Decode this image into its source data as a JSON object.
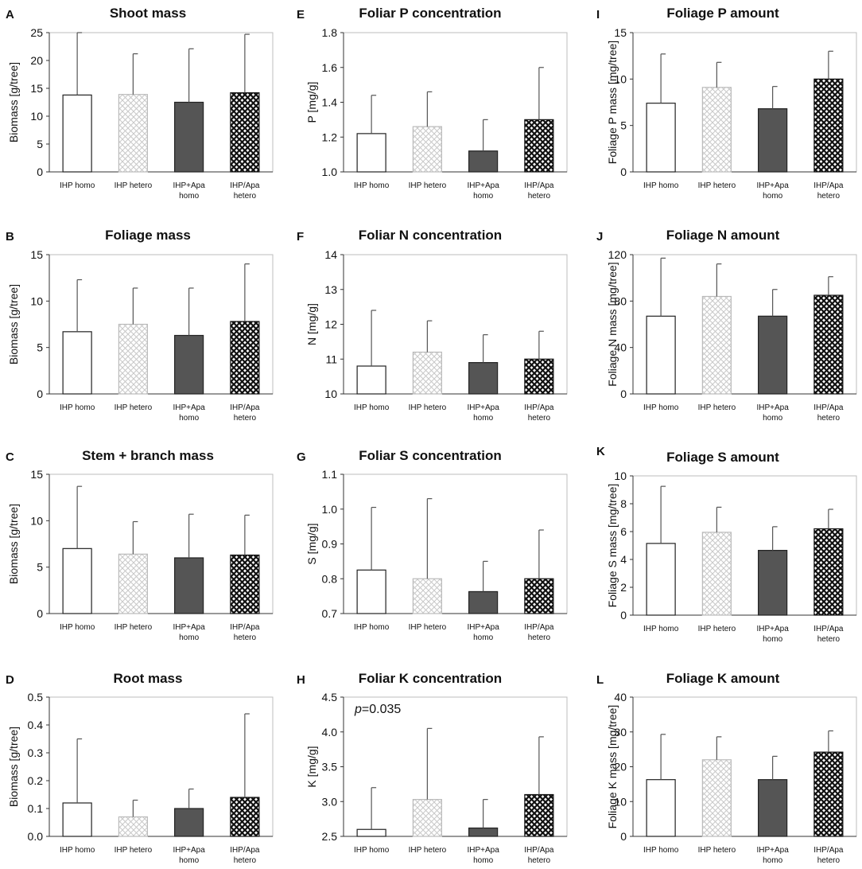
{
  "figure": {
    "groups": [
      "IHP homo",
      "IHP hetero",
      "IHP+Apa homo",
      "IHP/Apa hetero"
    ]
  },
  "colors": {
    "homo_fill": "#ffffff",
    "hetero_pattern": "#c8c8c8",
    "apa_homo_fill": "#555555",
    "apa_hetero_pattern": "#111111",
    "axis": "#333333",
    "errorbar": "#555555"
  },
  "chart_data": [
    {
      "id": "A",
      "type": "bar",
      "title": "Shoot mass",
      "ylabel": "Biomass [g/tree]",
      "ylim": [
        0,
        25
      ],
      "yticks": [
        "0",
        "5",
        "10",
        "15",
        "20",
        "25"
      ],
      "categories": [
        [
          "IHP homo"
        ],
        [
          "IHP hetero"
        ],
        [
          "IHP+Apa",
          "homo"
        ],
        [
          "IHP/Apa",
          "hetero"
        ]
      ],
      "values": [
        13.8,
        13.9,
        12.5,
        14.2
      ],
      "errors": [
        12.0,
        7.3,
        9.6,
        10.5
      ]
    },
    {
      "id": "B",
      "type": "bar",
      "title": "Foliage mass",
      "ylabel": "Biomass [g/tree]",
      "ylim": [
        0,
        15
      ],
      "yticks": [
        "0",
        "5",
        "10",
        "15"
      ],
      "categories": [
        [
          "IHP homo"
        ],
        [
          "IHP hetero"
        ],
        [
          "IHP+Apa",
          "homo"
        ],
        [
          "IHP/Apa",
          "hetero"
        ]
      ],
      "values": [
        6.7,
        7.5,
        6.3,
        7.8
      ],
      "errors": [
        5.6,
        3.9,
        5.1,
        6.2
      ]
    },
    {
      "id": "C",
      "type": "bar",
      "title": "Stem + branch mass",
      "ylabel": "Biomass [g/tree]",
      "ylim": [
        0,
        15
      ],
      "yticks": [
        "0",
        "5",
        "10",
        "15"
      ],
      "categories": [
        [
          "IHP homo"
        ],
        [
          "IHP hetero"
        ],
        [
          "IHP+Apa",
          "homo"
        ],
        [
          "IHP/Apa",
          "hetero"
        ]
      ],
      "values": [
        7.0,
        6.4,
        6.0,
        6.3
      ],
      "errors": [
        6.7,
        3.5,
        4.7,
        4.3
      ]
    },
    {
      "id": "D",
      "type": "bar",
      "title": "Root mass",
      "ylabel": "Biomass [g/tree]",
      "ylim": [
        0,
        0.5
      ],
      "yticks": [
        "0.0",
        "0.1",
        "0.2",
        "0.3",
        "0.4",
        "0.5"
      ],
      "categories": [
        [
          "IHP homo"
        ],
        [
          "IHP hetero"
        ],
        [
          "IHP+Apa",
          "homo"
        ],
        [
          "IHP/Apa",
          "hetero"
        ]
      ],
      "values": [
        0.12,
        0.07,
        0.1,
        0.14
      ],
      "errors": [
        0.23,
        0.06,
        0.07,
        0.3
      ]
    },
    {
      "id": "E",
      "type": "bar",
      "title": "Foliar P concentration",
      "ylabel": "P  [mg/g]",
      "ylim": [
        1.0,
        1.8
      ],
      "yticks": [
        "1.0",
        "1.2",
        "1.4",
        "1.6",
        "1.8"
      ],
      "categories": [
        [
          "IHP homo"
        ],
        [
          "IHP hetero"
        ],
        [
          "IHP+Apa",
          "homo"
        ],
        [
          "IHP/Apa",
          "hetero"
        ]
      ],
      "values": [
        1.22,
        1.26,
        1.12,
        1.3
      ],
      "errors": [
        0.22,
        0.2,
        0.18,
        0.3
      ]
    },
    {
      "id": "F",
      "type": "bar",
      "title": "Foliar N concentration",
      "ylabel": "N  [mg/g]",
      "ylim": [
        10,
        14
      ],
      "yticks": [
        "10",
        "11",
        "12",
        "13",
        "14"
      ],
      "categories": [
        [
          "IHP homo"
        ],
        [
          "IHP hetero"
        ],
        [
          "IHP+Apa",
          "homo"
        ],
        [
          "IHP/Apa",
          "hetero"
        ]
      ],
      "values": [
        10.8,
        11.2,
        10.9,
        11.0
      ],
      "errors": [
        1.6,
        0.9,
        0.8,
        0.8
      ]
    },
    {
      "id": "G",
      "type": "bar",
      "title": "Foliar S concentration",
      "ylabel": "S [mg/g]",
      "ylim": [
        0.7,
        1.1
      ],
      "yticks": [
        "0.7",
        "0.8",
        "0.9",
        "1.0",
        "1.1"
      ],
      "categories": [
        [
          "IHP homo"
        ],
        [
          "IHP hetero"
        ],
        [
          "IHP+Apa",
          "homo"
        ],
        [
          "IHP/Apa",
          "hetero"
        ]
      ],
      "values": [
        0.825,
        0.8,
        0.763,
        0.8
      ],
      "errors": [
        0.18,
        0.23,
        0.087,
        0.14
      ]
    },
    {
      "id": "H",
      "type": "bar",
      "title": "Foliar K concentration",
      "ylabel": "K [mg/g]",
      "ylim": [
        2.5,
        4.5
      ],
      "yticks": [
        "2.5",
        "3.0",
        "3.5",
        "4.0",
        "4.5"
      ],
      "categories": [
        [
          "IHP homo"
        ],
        [
          "IHP hetero"
        ],
        [
          "IHP+Apa",
          "homo"
        ],
        [
          "IHP/Apa",
          "hetero"
        ]
      ],
      "values": [
        2.6,
        3.03,
        2.62,
        3.1
      ],
      "errors": [
        0.6,
        1.02,
        0.41,
        0.83
      ],
      "annotation_p": "p",
      "annotation_value": "=0.035"
    },
    {
      "id": "I",
      "type": "bar",
      "title": "Foliage P amount",
      "ylabel": "Foliage P mass [mg/tree]",
      "ylim": [
        0,
        15
      ],
      "yticks": [
        "0",
        "5",
        "10",
        "15"
      ],
      "categories": [
        [
          "IHP homo"
        ],
        [
          "IHP hetero"
        ],
        [
          "IHP+Apa",
          "homo"
        ],
        [
          "IHP/Apa",
          "hetero"
        ]
      ],
      "values": [
        7.4,
        9.1,
        6.8,
        10.0
      ],
      "errors": [
        5.3,
        2.7,
        2.4,
        3.0
      ]
    },
    {
      "id": "J",
      "type": "bar",
      "title": "Foliage N amount",
      "ylabel": "Foliage N mass [mg/tree]",
      "ylim": [
        0,
        120
      ],
      "yticks": [
        "0",
        "40",
        "80",
        "120"
      ],
      "categories": [
        [
          "IHP homo"
        ],
        [
          "IHP hetero"
        ],
        [
          "IHP+Apa",
          "homo"
        ],
        [
          "IHP/Apa",
          "hetero"
        ]
      ],
      "values": [
        67,
        84,
        67,
        85
      ],
      "errors": [
        50,
        28,
        23,
        16
      ]
    },
    {
      "id": "K",
      "type": "bar",
      "title": "Foliage S amount",
      "ylabel": "Foliage S mass  [mg/tree]",
      "ylim": [
        0,
        10
      ],
      "yticks": [
        "0",
        "2",
        "4",
        "6",
        "8",
        "10"
      ],
      "categories": [
        [
          "IHP homo"
        ],
        [
          "IHP hetero"
        ],
        [
          "IHP+Apa",
          "homo"
        ],
        [
          "IHP/Apa",
          "hetero"
        ]
      ],
      "values": [
        5.15,
        5.95,
        4.65,
        6.2
      ],
      "errors": [
        4.1,
        1.8,
        1.7,
        1.4
      ]
    },
    {
      "id": "L",
      "type": "bar",
      "title": "Foliage K amount",
      "ylabel": "Foliage K mass  [mg/tree]",
      "ylim": [
        0,
        40
      ],
      "yticks": [
        "0",
        "10",
        "20",
        "30",
        "40"
      ],
      "categories": [
        [
          "IHP homo"
        ],
        [
          "IHP hetero"
        ],
        [
          "IHP+Apa",
          "homo"
        ],
        [
          "IHP/Apa",
          "hetero"
        ]
      ],
      "values": [
        16.3,
        22.0,
        16.3,
        24.2
      ],
      "errors": [
        13.0,
        6.6,
        6.7,
        6.1
      ]
    }
  ]
}
